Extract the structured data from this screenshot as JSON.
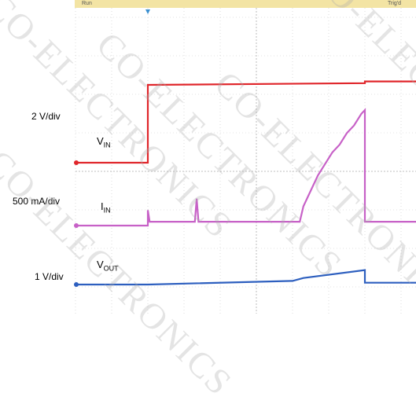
{
  "scope": {
    "status_left": "Run",
    "status_right": "Trig'd",
    "colors": {
      "vin": "#e0262b",
      "iin": "#c761c7",
      "vout": "#2d5fbf",
      "grid": "#c8c8c8",
      "frame": "#c8a84a"
    }
  },
  "labels": {
    "scale_vin": "2 V/div",
    "scale_iin": "500 mA/div",
    "scale_vout": "1 V/div",
    "vin": {
      "main": "V",
      "sub": "IN"
    },
    "iin": {
      "main": "I",
      "sub": "IN"
    },
    "vout": {
      "main": "V",
      "sub": "OUT"
    }
  },
  "watermark": "CO-ELECTRONICS",
  "chart_data": {
    "type": "line",
    "title": "",
    "xlabel": "",
    "ylabel": "",
    "grid": true,
    "x_divisions": 10,
    "y_divisions": 8,
    "series": [
      {
        "name": "VIN",
        "scale": "2 V/div",
        "x": [
          0,
          2.0,
          2.0,
          8.0,
          8.0,
          10
        ],
        "y": [
          0,
          0,
          4.5,
          4.6,
          4.7,
          4.7
        ]
      },
      {
        "name": "IIN",
        "scale": "500 mA/div",
        "x": [
          0,
          2.0,
          2.0,
          2.05,
          3.3,
          3.35,
          3.4,
          6.2,
          6.3,
          6.5,
          6.7,
          6.9,
          7.1,
          7.3,
          7.5,
          7.7,
          7.9,
          8.0,
          8.0,
          10
        ],
        "y": [
          0,
          0,
          0.2,
          0.05,
          0.05,
          0.35,
          0.05,
          0.05,
          0.25,
          0.45,
          0.65,
          0.8,
          0.95,
          1.05,
          1.2,
          1.3,
          1.45,
          1.5,
          0.05,
          0.05
        ]
      },
      {
        "name": "VOUT",
        "scale": "1 V/div",
        "x": [
          0,
          2.0,
          6.0,
          6.3,
          8.0,
          8.0,
          10
        ],
        "y": [
          0,
          0,
          0.1,
          0.18,
          0.4,
          0.05,
          0.05
        ]
      }
    ]
  }
}
